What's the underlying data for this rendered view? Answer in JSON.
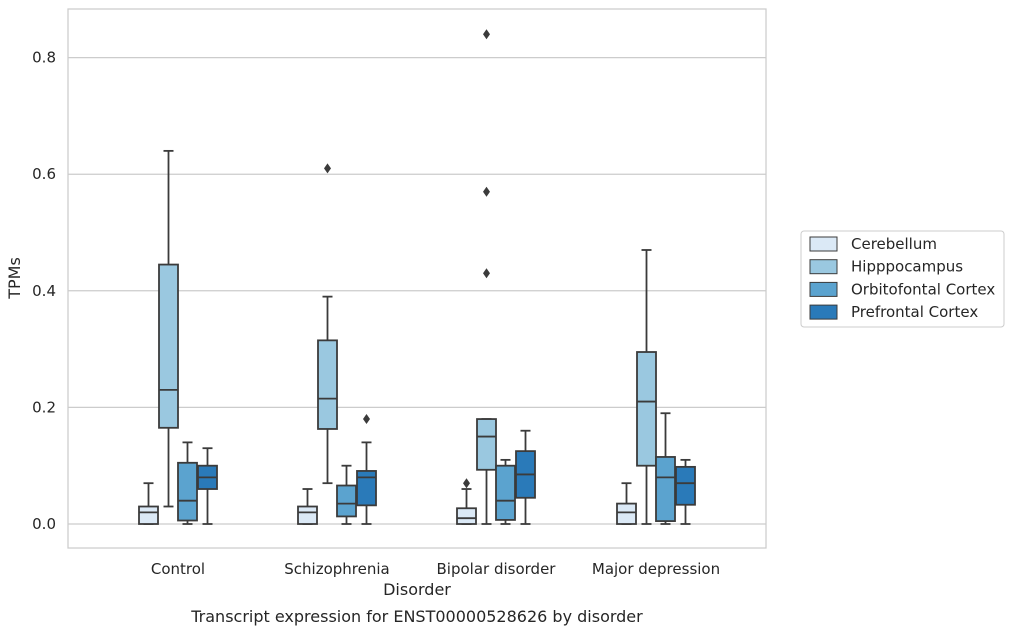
{
  "chart_data": {
    "type": "boxplot",
    "title": "",
    "caption": "Transcript expression for ENST00000528626 by disorder",
    "xlabel": "Disorder",
    "ylabel": "TPMs",
    "ylim": [
      -0.04,
      0.88
    ],
    "yticks": [
      0.0,
      0.2,
      0.4,
      0.6,
      0.8
    ],
    "ytick_labels": [
      "0.0",
      "0.2",
      "0.4",
      "0.6",
      "0.8"
    ],
    "grid": "horizontal",
    "legend_position": "right, outside plot",
    "categories": [
      "Control",
      "Schizophrenia",
      "Bipolar disorder",
      "Major depression"
    ],
    "series": [
      {
        "name": "Cerebellum",
        "color": "#dbe9f6",
        "boxes": [
          {
            "whislo": 0.0,
            "q1": 0.0,
            "med": 0.02,
            "q3": 0.03,
            "whishi": 0.07,
            "fliers": []
          },
          {
            "whislo": 0.0,
            "q1": 0.0,
            "med": 0.02,
            "q3": 0.03,
            "whishi": 0.06,
            "fliers": []
          },
          {
            "whislo": 0.0,
            "q1": 0.0,
            "med": 0.01,
            "q3": 0.027,
            "whishi": 0.06,
            "fliers": [
              0.07
            ]
          },
          {
            "whislo": 0.0,
            "q1": 0.0,
            "med": 0.02,
            "q3": 0.035,
            "whishi": 0.07,
            "fliers": []
          }
        ]
      },
      {
        "name": "Hipppocampus",
        "color": "#9ac8e0",
        "boxes": [
          {
            "whislo": 0.03,
            "q1": 0.165,
            "med": 0.23,
            "q3": 0.445,
            "whishi": 0.64,
            "fliers": []
          },
          {
            "whislo": 0.07,
            "q1": 0.163,
            "med": 0.215,
            "q3": 0.315,
            "whishi": 0.39,
            "fliers": [
              0.61
            ]
          },
          {
            "whislo": 0.0,
            "q1": 0.093,
            "med": 0.15,
            "q3": 0.18,
            "whishi": 0.18,
            "fliers": [
              0.43,
              0.57,
              0.84
            ]
          },
          {
            "whislo": 0.0,
            "q1": 0.1,
            "med": 0.21,
            "q3": 0.295,
            "whishi": 0.47,
            "fliers": []
          }
        ]
      },
      {
        "name": "Orbitofontal Cortex",
        "color": "#5ba3cf",
        "boxes": [
          {
            "whislo": 0.0,
            "q1": 0.006,
            "med": 0.04,
            "q3": 0.105,
            "whishi": 0.14,
            "fliers": []
          },
          {
            "whislo": 0.0,
            "q1": 0.013,
            "med": 0.035,
            "q3": 0.066,
            "whishi": 0.1,
            "fliers": []
          },
          {
            "whislo": 0.0,
            "q1": 0.007,
            "med": 0.04,
            "q3": 0.1,
            "whishi": 0.11,
            "fliers": []
          },
          {
            "whislo": 0.0,
            "q1": 0.005,
            "med": 0.08,
            "q3": 0.115,
            "whishi": 0.19,
            "fliers": []
          }
        ]
      },
      {
        "name": "Prefrontal Cortex",
        "color": "#2a7ab9",
        "boxes": [
          {
            "whislo": 0.0,
            "q1": 0.06,
            "med": 0.08,
            "q3": 0.1,
            "whishi": 0.13,
            "fliers": []
          },
          {
            "whislo": 0.0,
            "q1": 0.032,
            "med": 0.08,
            "q3": 0.091,
            "whishi": 0.14,
            "fliers": [
              0.18
            ]
          },
          {
            "whislo": 0.0,
            "q1": 0.045,
            "med": 0.085,
            "q3": 0.125,
            "whishi": 0.16,
            "fliers": []
          },
          {
            "whislo": 0.0,
            "q1": 0.033,
            "med": 0.07,
            "q3": 0.098,
            "whishi": 0.11,
            "fliers": []
          }
        ]
      }
    ]
  }
}
